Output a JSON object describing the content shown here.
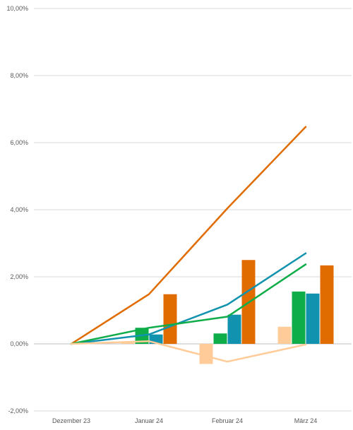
{
  "chart_data": {
    "type": "bar",
    "categories": [
      "Dezember 23",
      "Januar 24",
      "Februar 24",
      "März 24"
    ],
    "ylim": [
      -0.02,
      0.1
    ],
    "yticks": [
      -0.02,
      0,
      0.02,
      0.04,
      0.06,
      0.08,
      0.1
    ],
    "ytick_labels": [
      "-2,00%",
      "0,00%",
      "2,00%",
      "4,00%",
      "6,00%",
      "8,00%",
      "10,00%"
    ],
    "grid": true,
    "legend": "none",
    "bar_series": [
      {
        "color": "#ffcc99",
        "values": [
          0,
          0.0005,
          -0.006,
          0.0051
        ]
      },
      {
        "color": "#0fad4a",
        "values": [
          0,
          0.0048,
          0.0031,
          0.0156
        ]
      },
      {
        "color": "#1192ae",
        "values": [
          0,
          0.0028,
          0.0087,
          0.015
        ]
      },
      {
        "color": "#e06c00",
        "values": [
          0,
          0.0148,
          0.025,
          0.0234
        ]
      }
    ],
    "line_series": [
      {
        "color": "#e06c00",
        "values": [
          0,
          0.0148,
          0.0404,
          0.0647
        ]
      },
      {
        "color": "#1192ae",
        "values": [
          0,
          0.0028,
          0.0117,
          0.027
        ]
      },
      {
        "color": "#0fad4a",
        "values": [
          0,
          0.0048,
          0.0081,
          0.0237
        ]
      },
      {
        "color": "#ffcc99",
        "values": [
          0,
          0.0008,
          -0.0053,
          -0.0002
        ]
      }
    ]
  }
}
